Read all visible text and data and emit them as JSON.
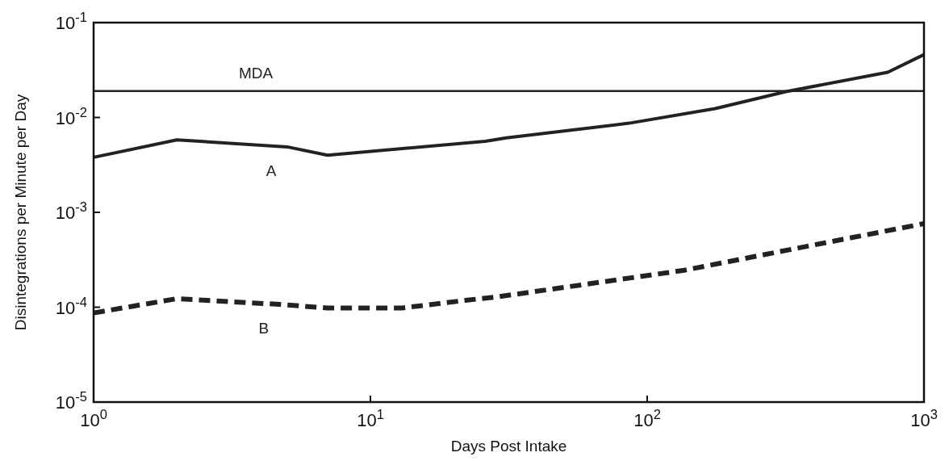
{
  "chart_data": {
    "type": "line",
    "xlabel": "Days Post Intake",
    "ylabel": "Disintegrations per Minute per Day",
    "log": "xy",
    "grid": false,
    "marker": "none",
    "xlim": [
      1,
      1000
    ],
    "xticks": [
      {
        "value": 1,
        "label": "10$^{0}$"
      },
      {
        "value": 10,
        "label": "10$^{1}$"
      },
      {
        "value": 100,
        "label": "10$^{2}$"
      },
      {
        "value": 1000,
        "label": "10$^{3}$"
      }
    ],
    "ylim": [
      1e-05,
      0.1
    ],
    "yticks": [
      {
        "value": 1e-05,
        "label": "10$^{-5}$"
      },
      {
        "value": 0.0001,
        "label": "10$^{-4}$"
      },
      {
        "value": 0.001,
        "label": "10$^{-3}$"
      },
      {
        "value": 0.01,
        "label": "10$^{-2}$"
      },
      {
        "value": 0.1,
        "label": "10$^{-1}$"
      }
    ],
    "ref_lines": [
      {
        "axis": "y",
        "value": 0.019,
        "label": "MDA",
        "color": "#222222"
      }
    ],
    "series": [
      {
        "name": "A",
        "color": "#222222",
        "line_style": "solid",
        "x": [
          1,
          2,
          5,
          7,
          26,
          31,
          86,
          176,
          317,
          740,
          1000
        ],
        "values": [
          0.0038,
          0.0058,
          0.0049,
          0.004,
          0.0056,
          0.0061,
          0.0087,
          0.0124,
          0.0187,
          0.03,
          0.046
        ]
      },
      {
        "name": "B",
        "color": "#222222",
        "line_style": "dashed",
        "x": [
          1,
          2,
          4.7,
          7,
          13,
          22,
          29,
          136,
          380,
          1000
        ],
        "values": [
          8.7e-05,
          0.000123,
          0.000107,
          9.8e-05,
          9.8e-05,
          0.000118,
          0.000129,
          0.000245,
          0.00044,
          0.00076
        ]
      }
    ]
  }
}
